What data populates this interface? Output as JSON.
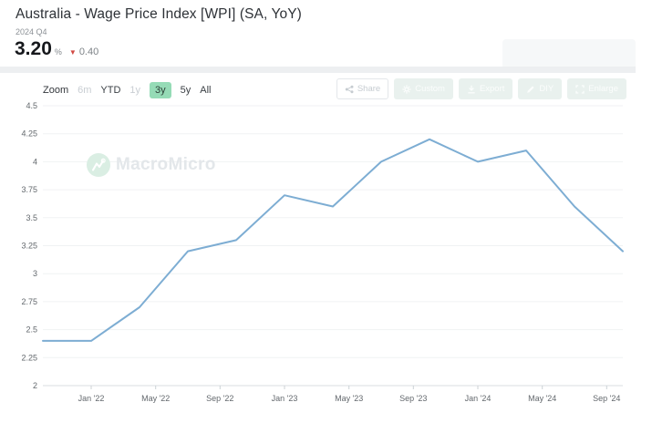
{
  "header": {
    "title": "Australia - Wage Price Index [WPI] (SA, YoY)",
    "period": "2024 Q4",
    "value": "3.20",
    "unit": "%",
    "change_arrow": "▼",
    "change": "0.40",
    "change_direction": "down",
    "change_color": "#d24a43"
  },
  "toolbar": {
    "zoom_label": "Zoom",
    "ranges": [
      {
        "label": "6m",
        "state": "disabled"
      },
      {
        "label": "YTD",
        "state": "normal"
      },
      {
        "label": "1y",
        "state": "disabled"
      },
      {
        "label": "3y",
        "state": "selected"
      },
      {
        "label": "5y",
        "state": "normal"
      },
      {
        "label": "All",
        "state": "normal"
      }
    ],
    "actions": [
      {
        "label": "Share",
        "icon": "share-icon"
      },
      {
        "label": "Custom",
        "icon": "gear-icon"
      },
      {
        "label": "Export",
        "icon": "download-icon"
      },
      {
        "label": "DIY",
        "icon": "pencil-icon"
      },
      {
        "label": "Enlarge",
        "icon": "enlarge-icon"
      }
    ]
  },
  "watermark": {
    "text": "MacroMicro",
    "icon": "macromicro-logo-icon"
  },
  "chart_data": {
    "type": "line",
    "title": "Australia - Wage Price Index [WPI] (SA, YoY)",
    "xlabel": "",
    "ylabel": "",
    "ylim": [
      2.0,
      4.5
    ],
    "y_tick_step": 0.25,
    "grid": true,
    "legend": "none",
    "line_color": "#7dadd3",
    "x_span_months": 36,
    "x_start": "2021 Q4",
    "points": [
      {
        "period": "2021 Q4",
        "value": 2.4
      },
      {
        "period": "2022 Q1",
        "value": 2.4
      },
      {
        "period": "2022 Q2",
        "value": 2.7
      },
      {
        "period": "2022 Q3",
        "value": 3.2
      },
      {
        "period": "2022 Q4",
        "value": 3.3
      },
      {
        "period": "2023 Q1",
        "value": 3.7
      },
      {
        "period": "2023 Q2",
        "value": 3.6
      },
      {
        "period": "2023 Q3",
        "value": 4.0
      },
      {
        "period": "2023 Q4",
        "value": 4.2
      },
      {
        "period": "2024 Q1",
        "value": 4.0
      },
      {
        "period": "2024 Q2",
        "value": 4.1
      },
      {
        "period": "2024 Q3",
        "value": 3.6
      },
      {
        "period": "2024 Q4",
        "value": 3.2
      }
    ],
    "x_ticks": [
      {
        "label": "Jan '22",
        "month_offset": 3
      },
      {
        "label": "May '22",
        "month_offset": 7
      },
      {
        "label": "Sep '22",
        "month_offset": 11
      },
      {
        "label": "Jan '23",
        "month_offset": 15
      },
      {
        "label": "May '23",
        "month_offset": 19
      },
      {
        "label": "Sep '23",
        "month_offset": 23
      },
      {
        "label": "Jan '24",
        "month_offset": 27
      },
      {
        "label": "May '24",
        "month_offset": 31
      },
      {
        "label": "Sep '24",
        "month_offset": 35
      }
    ]
  }
}
